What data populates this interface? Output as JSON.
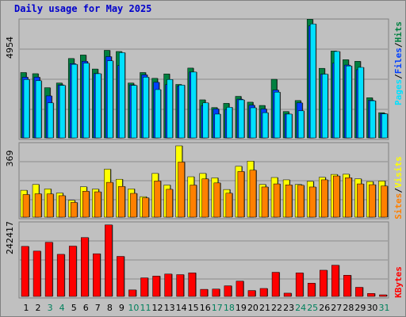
{
  "title": "Daily usage for May 2025",
  "colors": {
    "hits": "#008040",
    "files": "#0040ff",
    "pages": "#00e0ff",
    "visits": "#ffff00",
    "sites": "#ff8000",
    "kbytes": "#ff0000",
    "weekend_label": "#00805c",
    "weekday_label": "#000000"
  },
  "chart_data": [
    {
      "type": "bar",
      "title": "Daily usage for May 2025",
      "categories": [
        "1",
        "2",
        "3",
        "4",
        "5",
        "6",
        "7",
        "8",
        "9",
        "10",
        "11",
        "12",
        "13",
        "14",
        "15",
        "16",
        "17",
        "18",
        "19",
        "20",
        "21",
        "22",
        "23",
        "24",
        "25",
        "26",
        "27",
        "28",
        "29",
        "30",
        "31"
      ],
      "weekend_days": [
        "3",
        "4",
        "10",
        "11",
        "17",
        "18",
        "24",
        "25",
        "31"
      ],
      "ylim": [
        0,
        4954
      ],
      "y_tick_labels": [
        "4954"
      ],
      "legend": [
        "Pages",
        "/",
        "Files",
        "/",
        "Hits"
      ],
      "legend_placement": "right",
      "series": [
        {
          "name": "Hits",
          "values": [
            2800,
            2750,
            2150,
            2350,
            3400,
            3550,
            2950,
            3750,
            3700,
            2350,
            2800,
            2550,
            2740,
            2290,
            2990,
            1630,
            1300,
            1480,
            1780,
            1530,
            1390,
            2510,
            1130,
            1600,
            5080,
            2980,
            3720,
            3350,
            3280,
            1720,
            1080
          ]
        },
        {
          "name": "Files",
          "values": [
            2600,
            2600,
            1800,
            2270,
            3180,
            3280,
            2760,
            3480,
            3100,
            2270,
            2700,
            2380,
            2280,
            2230,
            2820,
            1380,
            1240,
            1220,
            1660,
            1400,
            1240,
            2050,
            1020,
            1500,
            4800,
            2730,
            3200,
            3120,
            2920,
            1610,
            1040
          ]
        },
        {
          "name": "Pages",
          "values": [
            2500,
            2450,
            1500,
            2250,
            3150,
            3200,
            2750,
            3300,
            3650,
            2250,
            2600,
            2070,
            2500,
            2260,
            2820,
            1500,
            1020,
            1310,
            1630,
            1290,
            1080,
            1960,
            1020,
            1160,
            4880,
            2730,
            3700,
            3080,
            3020,
            1590,
            1030
          ]
        }
      ]
    },
    {
      "type": "bar",
      "categories": [
        "1",
        "2",
        "3",
        "4",
        "5",
        "6",
        "7",
        "8",
        "9",
        "10",
        "11",
        "12",
        "13",
        "14",
        "15",
        "16",
        "17",
        "18",
        "19",
        "20",
        "21",
        "22",
        "23",
        "24",
        "25",
        "26",
        "27",
        "28",
        "29",
        "30",
        "31"
      ],
      "ylim": [
        0,
        369
      ],
      "y_tick_labels": [
        "369"
      ],
      "legend": [
        "Sites",
        "/",
        "Visits"
      ],
      "legend_placement": "right",
      "series": [
        {
          "name": "Visits",
          "values": [
            139,
            169,
            146,
            125,
            87,
            157,
            145,
            248,
            196,
            146,
            106,
            226,
            166,
            369,
            209,
            226,
            203,
            143,
            263,
            290,
            169,
            205,
            193,
            169,
            185,
            206,
            221,
            222,
            198,
            184,
            187
          ]
        },
        {
          "name": "Sites",
          "values": [
            117,
            121,
            120,
            111,
            76,
            134,
            131,
            180,
            159,
            123,
            100,
            187,
            144,
            285,
            166,
            198,
            177,
            124,
            236,
            243,
            156,
            172,
            167,
            165,
            156,
            193,
            213,
            204,
            172,
            168,
            161
          ]
        }
      ]
    },
    {
      "type": "bar",
      "categories": [
        "1",
        "2",
        "3",
        "4",
        "5",
        "6",
        "7",
        "8",
        "9",
        "10",
        "11",
        "12",
        "13",
        "14",
        "15",
        "16",
        "17",
        "18",
        "19",
        "20",
        "21",
        "22",
        "23",
        "24",
        "25",
        "26",
        "27",
        "28",
        "29",
        "30",
        "31"
      ],
      "ylim": [
        0,
        242417
      ],
      "y_tick_labels": [
        "242417"
      ],
      "legend": [
        "KBytes"
      ],
      "legend_placement": "right",
      "series": [
        {
          "name": "KBytes",
          "values": [
            170000,
            154000,
            184000,
            143000,
            171000,
            200000,
            145000,
            243000,
            136000,
            22000,
            63000,
            69000,
            76000,
            74000,
            80000,
            24000,
            25000,
            36000,
            52000,
            20000,
            27000,
            82000,
            11000,
            80000,
            45000,
            89000,
            106000,
            72000,
            31000,
            10000,
            0
          ]
        }
      ]
    }
  ]
}
